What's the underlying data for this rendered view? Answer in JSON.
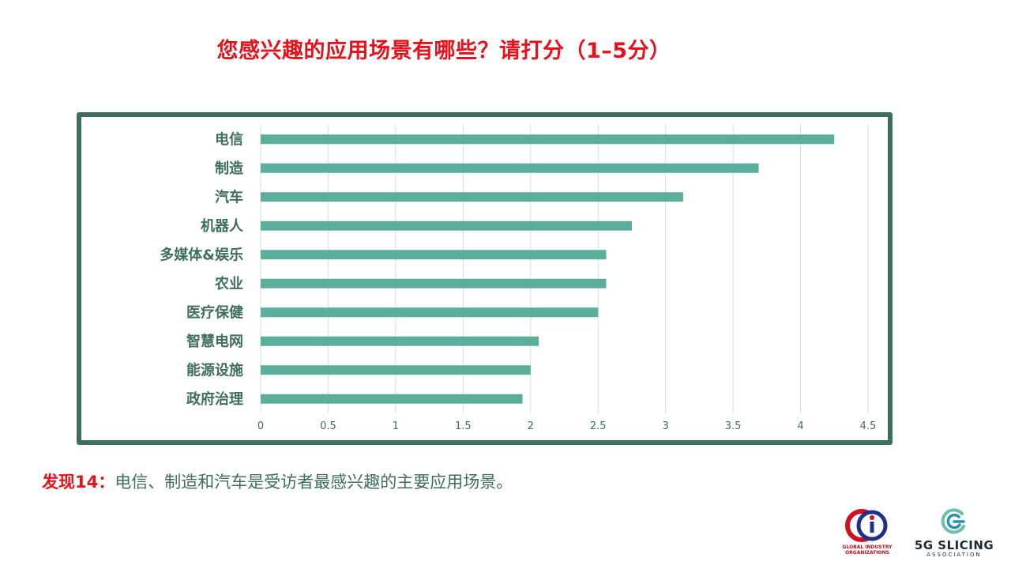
{
  "title": "您感兴趣的应用场景有哪些？请打分（1–5分）",
  "finding": {
    "prefix": "发现14：",
    "text": "电信、制造和汽车是受访者最感兴趣的主要应用场景。"
  },
  "logos": {
    "gio": {
      "name": "GLOBAL INDUSTRY\nORGANIZATIONS",
      "icon": "gio-logo-icon"
    },
    "slicing": {
      "name": "5G SLICING",
      "sub": "ASSOCIATION",
      "icon": "5g-slicing-logo-icon"
    }
  },
  "colors": {
    "bar": "#5aae9a",
    "frame": "#3e6e5e",
    "title": "#e8101a",
    "grid": "#dddddd"
  },
  "chart_data": {
    "type": "bar",
    "orientation": "horizontal",
    "categories": [
      "电信",
      "制造",
      "汽车",
      "机器人",
      "多媒体&娱乐",
      "农业",
      "医疗保健",
      "智慧电网",
      "能源设施",
      "政府治理"
    ],
    "values": [
      4.25,
      3.69,
      3.13,
      2.75,
      2.56,
      2.56,
      2.5,
      2.06,
      2.0,
      1.94
    ],
    "xlim": [
      0,
      4.5
    ],
    "xticks": [
      "0",
      "0.5",
      "1",
      "1.5",
      "2",
      "2.5",
      "3",
      "3.5",
      "4",
      "4.5"
    ],
    "grid": true
  }
}
